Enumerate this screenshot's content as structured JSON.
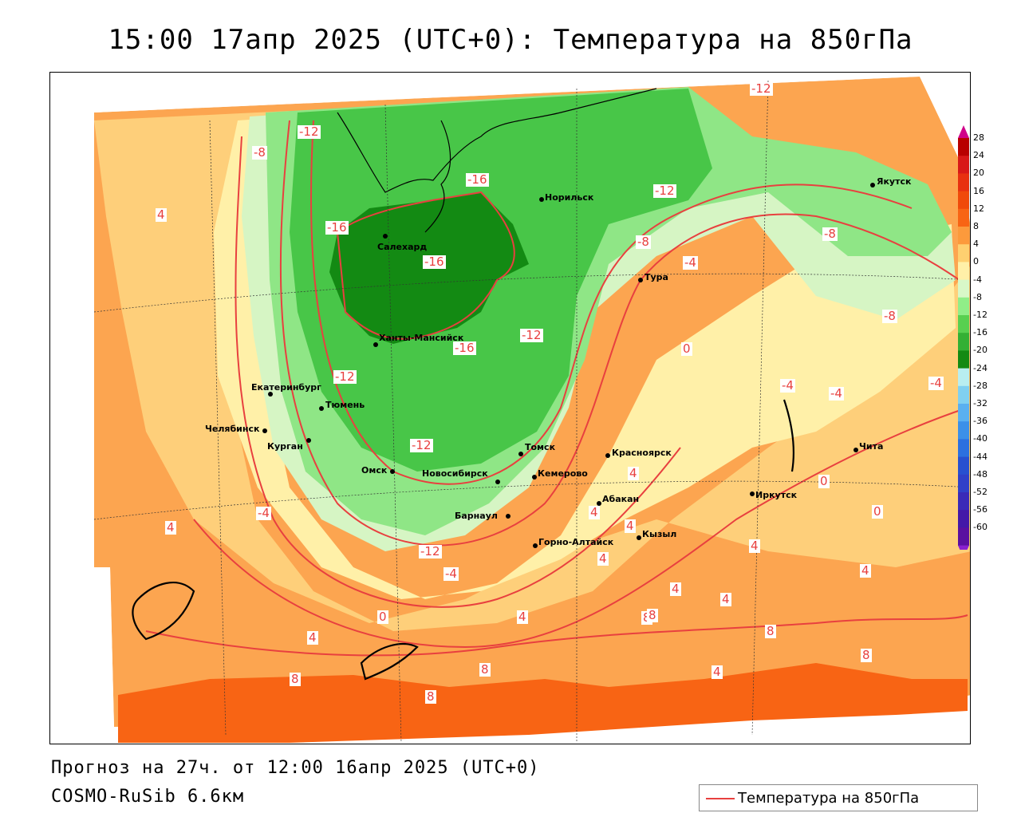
{
  "title": "15:00 17апр 2025 (UTC+0): Температура на 850гПа",
  "footer": {
    "forecast": "Прогноз на 27ч. от 12:00 16апр 2025 (UTC+0)",
    "model": "COSMO-RuSib 6.6км"
  },
  "legend": {
    "label": "Температура на 850гПа",
    "line_color": "#e8403f"
  },
  "scale": {
    "labels": [
      "28",
      "24",
      "20",
      "16",
      "12",
      "8",
      "4",
      "0",
      "-4",
      "-8",
      "-12",
      "-16",
      "-20",
      "-24",
      "-28",
      "-32",
      "-36",
      "-40",
      "-44",
      "-48",
      "-52",
      "-56",
      "-60"
    ],
    "colors": [
      "#b80000",
      "#d81818",
      "#e83010",
      "#f04a0a",
      "#f86414",
      "#fc9a3c",
      "#fed070",
      "#fff0a8",
      "#d8f8c8",
      "#90ee88",
      "#58d050",
      "#34b034",
      "#138a13",
      "#b8eef0",
      "#80d0f0",
      "#5ab0f0",
      "#3c90e8",
      "#2c70e0",
      "#2850d0",
      "#3040c8",
      "#3a2ab8",
      "#4418a8",
      "#5a10a0"
    ],
    "top_arrow_color": "#d0008a",
    "bottom_arrow_color": "#8a20d0"
  },
  "cities": [
    {
      "name": "Якутск"
    },
    {
      "name": "Норильск"
    },
    {
      "name": "Салехард"
    },
    {
      "name": "Тура"
    },
    {
      "name": "Ханты-Мансийск"
    },
    {
      "name": "Екатеринбург"
    },
    {
      "name": "Тюмень"
    },
    {
      "name": "Челябинск"
    },
    {
      "name": "Курган"
    },
    {
      "name": "Омск"
    },
    {
      "name": "Новосибирск"
    },
    {
      "name": "Томск"
    },
    {
      "name": "Кемерово"
    },
    {
      "name": "Красноярск"
    },
    {
      "name": "Барнаул"
    },
    {
      "name": "Абакан"
    },
    {
      "name": "Горно-Алтайск"
    },
    {
      "name": "Кызыл"
    },
    {
      "name": "Иркутск"
    },
    {
      "name": "Чита"
    }
  ],
  "contour_labels": [
    "-12",
    "-8",
    "-12",
    "-16",
    "-16",
    "-16",
    "-12",
    "-12",
    "-8",
    "-8",
    "-4",
    "-16",
    "-12",
    "-12",
    "-8",
    "0",
    "-4",
    "-4",
    "-4",
    "-4",
    "-12",
    "4",
    "-4",
    "0",
    "0",
    "4",
    "4",
    "4",
    "4",
    "4",
    "4",
    "8",
    "8",
    "4",
    "8",
    "8",
    "4",
    "4",
    "8",
    "4",
    "4",
    "0",
    "4",
    "8",
    "8"
  ]
}
